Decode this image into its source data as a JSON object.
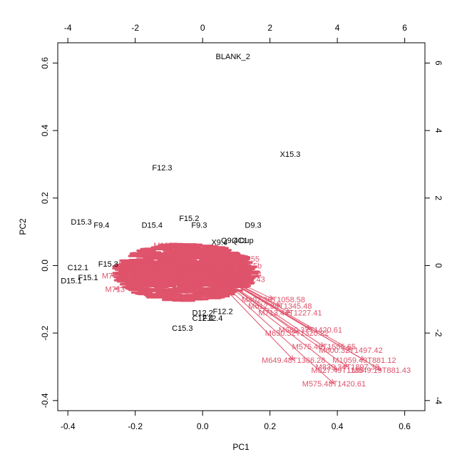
{
  "chart_data": {
    "type": "biplot",
    "xlabel": "PC1",
    "ylabel": "PC2",
    "xlim": [
      -0.43,
      0.66
    ],
    "ylim": [
      -0.43,
      0.66
    ],
    "xticks": [
      -0.4,
      -0.2,
      0.0,
      0.2,
      0.4,
      0.6
    ],
    "yticks": [
      -0.4,
      -0.2,
      0.0,
      0.2,
      0.4,
      0.6
    ],
    "x2ticks": [
      -4,
      -2,
      0,
      2,
      4,
      6
    ],
    "y2ticks": [
      -4,
      -2,
      0,
      2,
      4,
      6
    ],
    "xtick_labels": [
      "-0.4",
      "-0.2",
      "0.0",
      "0.2",
      "0.4",
      "0.6"
    ],
    "ytick_labels": [
      "-0.4",
      "-0.2",
      "0.0",
      "0.2",
      "0.4",
      "0.6"
    ],
    "x2tick_labels": [
      "-4",
      "-2",
      "0",
      "2",
      "4",
      "6"
    ],
    "y2tick_labels": [
      "-4",
      "-2",
      "0",
      "2",
      "4",
      "6"
    ],
    "colors": {
      "observations": "#000000",
      "loadings": "#DF536B"
    },
    "observations": [
      {
        "label": "BLANK_2",
        "x": 0.09,
        "y": 0.62
      },
      {
        "label": "X15.3",
        "x": 0.26,
        "y": 0.33
      },
      {
        "label": "F12.3",
        "x": -0.12,
        "y": 0.29
      },
      {
        "label": "D15.3",
        "x": -0.36,
        "y": 0.13
      },
      {
        "label": "F9.4",
        "x": -0.3,
        "y": 0.12
      },
      {
        "label": "D15.4",
        "x": -0.15,
        "y": 0.12
      },
      {
        "label": "F15.2",
        "x": -0.04,
        "y": 0.14
      },
      {
        "label": "F9.3",
        "x": -0.01,
        "y": 0.12
      },
      {
        "label": "D9.3",
        "x": 0.15,
        "y": 0.12
      },
      {
        "label": "X9.4",
        "x": 0.05,
        "y": 0.07
      },
      {
        "label": "Q9.4",
        "x": 0.08,
        "y": 0.075
      },
      {
        "label": "QC1",
        "x": 0.11,
        "y": 0.075
      },
      {
        "label": "Dup",
        "x": 0.13,
        "y": 0.075
      },
      {
        "label": "F15.3",
        "x": -0.28,
        "y": 0.005
      },
      {
        "label": "C12.1",
        "x": -0.37,
        "y": -0.005
      },
      {
        "label": "F15.1",
        "x": -0.34,
        "y": -0.035
      },
      {
        "label": "D15.1",
        "x": -0.39,
        "y": -0.045
      },
      {
        "label": "D12.2",
        "x": 0.0,
        "y": -0.14
      },
      {
        "label": "F12.2",
        "x": 0.06,
        "y": -0.135
      },
      {
        "label": "F12.4",
        "x": 0.03,
        "y": -0.155
      },
      {
        "label": "C12.4",
        "x": 0.0,
        "y": -0.155
      },
      {
        "label": "C15.3",
        "x": -0.06,
        "y": -0.185
      }
    ],
    "loadings": [
      {
        "label": "M1059.43T881.12",
        "x": 0.48,
        "y": -0.28
      },
      {
        "label": "M549.19T881.43",
        "x": 0.53,
        "y": -0.31
      },
      {
        "label": "M839.34T1897.38",
        "x": 0.43,
        "y": -0.3
      },
      {
        "label": "M827.49T1136",
        "x": 0.4,
        "y": -0.31
      },
      {
        "label": "M575.48T1420.61",
        "x": 0.39,
        "y": -0.35
      },
      {
        "label": "M649.48T1366.28",
        "x": 0.27,
        "y": -0.28
      },
      {
        "label": "M575.40T1555.65",
        "x": 0.36,
        "y": -0.24
      },
      {
        "label": "M600.32T1497.42",
        "x": 0.44,
        "y": -0.25
      },
      {
        "label": "M680.37T1420.61",
        "x": 0.32,
        "y": -0.19
      },
      {
        "label": "M650.32T1320.22",
        "x": 0.28,
        "y": -0.2
      },
      {
        "label": "M713.44T1227.41",
        "x": 0.26,
        "y": -0.14
      },
      {
        "label": "M612.33T1345.48",
        "x": 0.23,
        "y": -0.12
      },
      {
        "label": "M402.36T1058.58",
        "x": 0.21,
        "y": -0.1
      },
      {
        "label": "M437.43",
        "x": 0.14,
        "y": -0.04
      },
      {
        "label": "M381.54",
        "x": 0.13,
        "y": -0.025
      },
      {
        "label": "M255",
        "x": 0.14,
        "y": 0.02
      },
      {
        "label": "M255b",
        "x": 0.14,
        "y": 0.0
      },
      {
        "label": "M1055",
        "x": -0.11,
        "y": 0.06
      },
      {
        "label": "M743",
        "x": -0.22,
        "y": 0.01
      },
      {
        "label": "M740",
        "x": -0.27,
        "y": -0.03
      },
      {
        "label": "M713",
        "x": -0.26,
        "y": -0.07
      }
    ]
  }
}
